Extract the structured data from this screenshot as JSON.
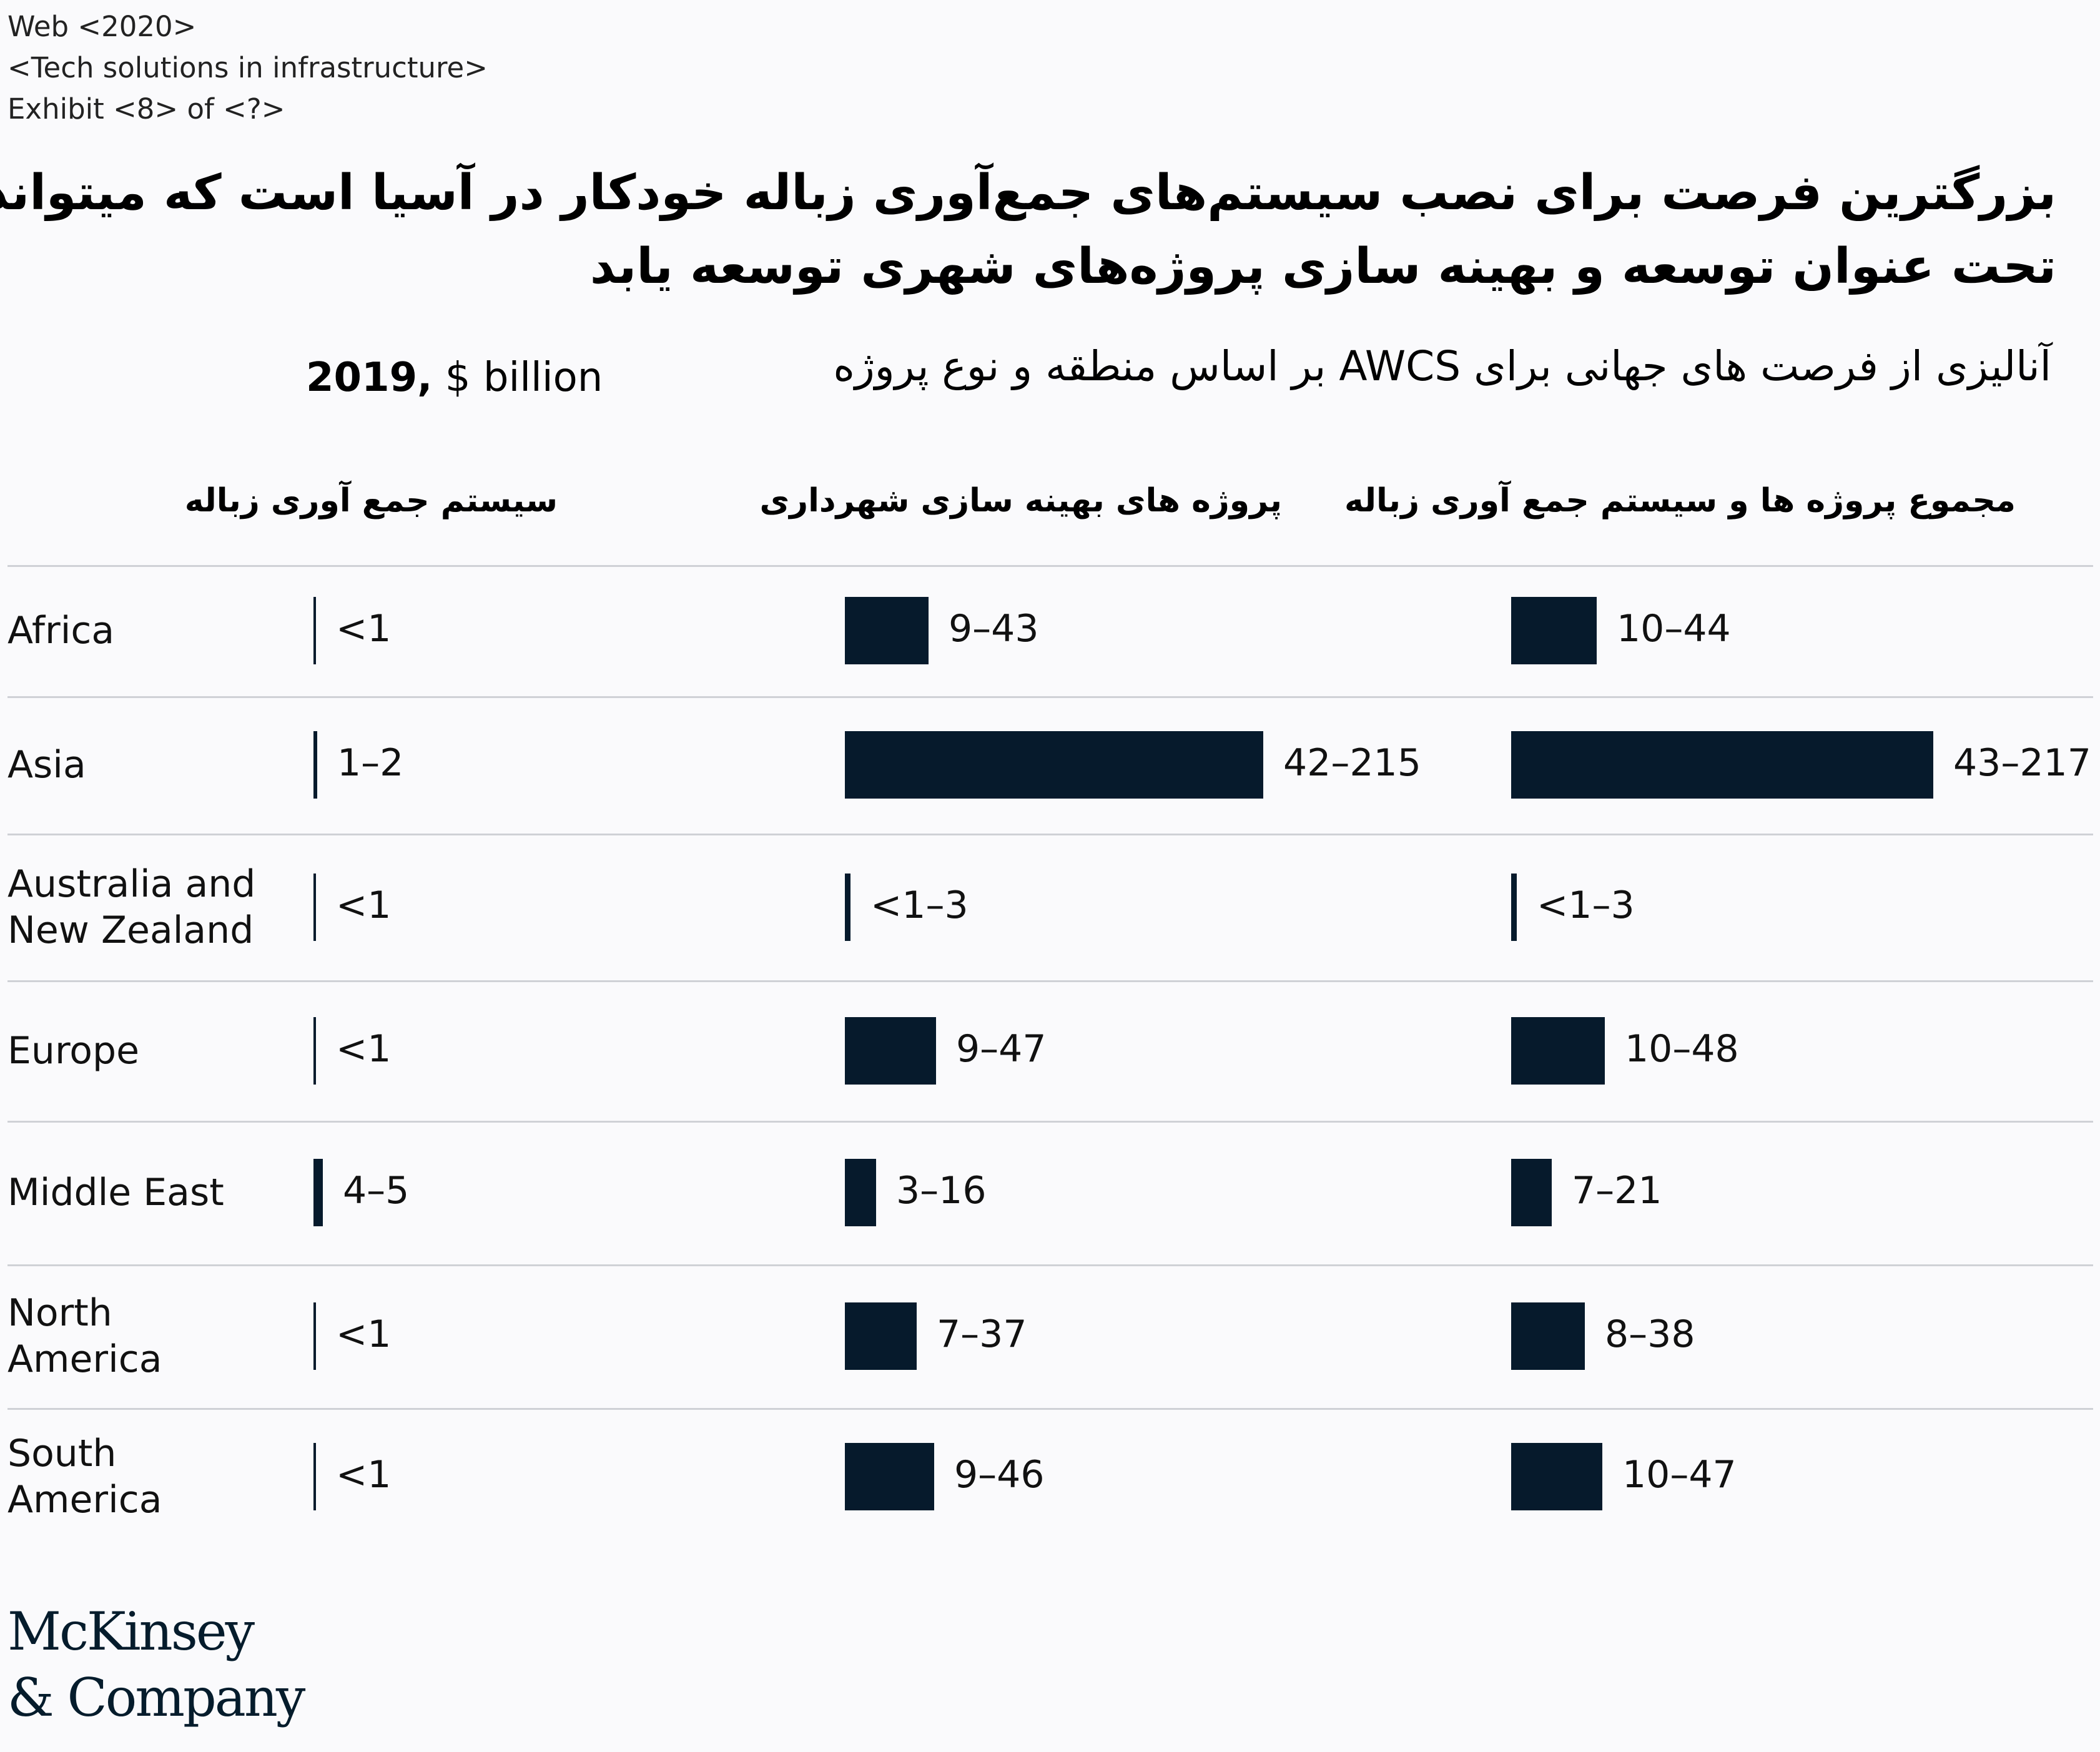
{
  "header": {
    "meta_lines": [
      "Web <2020>",
      "<Tech solutions in infrastructure>",
      "Exhibit <8> of <?>"
    ]
  },
  "chart_data": {
    "type": "bar",
    "title_lines": [
      "بزرگترین فرصت برای نصب سیستم‌های جمع‌آوری زباله خودکار در آسیا است که میتواند",
      "تحت عنوان  توسعه و بهینه سازی پروژه‌های  شهری توسعه یابد"
    ],
    "subtitle": "آنالیزی  از فرصت های جهانی برای  AWCS  بر اساس منطقه و نوع پروژه",
    "unit_year": "2019,",
    "unit_label": "$ billion",
    "categories": [
      "Africa",
      "Asia",
      "Australia and New Zealand",
      "Europe",
      "Middle East",
      "North America",
      "South America"
    ],
    "series": [
      {
        "name": "سیستم جمع آوری زباله",
        "values": [
          0.5,
          2,
          0.5,
          0.5,
          5,
          0.5,
          0.5
        ],
        "labels": [
          "<1",
          "1–2",
          "<1",
          "<1",
          "4–5",
          "<1",
          "<1"
        ]
      },
      {
        "name": "پروژه های بهینه سازی شهرداری",
        "values": [
          43,
          215,
          3,
          47,
          16,
          37,
          46
        ],
        "labels": [
          "9–43",
          "42–215",
          "<1–3",
          "9–47",
          "3–16",
          "7–37",
          "9–46"
        ]
      },
      {
        "name": "مجموع پروژه ها و سیستم جمع آوری زباله",
        "values": [
          44,
          217,
          3,
          48,
          21,
          38,
          47
        ],
        "labels": [
          "10–44",
          "43–217",
          "<1–3",
          "10–48",
          "7–21",
          "8–38",
          "10–47"
        ]
      }
    ],
    "xlim": [
      0,
      217
    ],
    "grid": false,
    "legend": "none",
    "bar_color": "#061a2c"
  },
  "footer": {
    "logo_line1": "McKinsey",
    "logo_line2": "& Company"
  }
}
